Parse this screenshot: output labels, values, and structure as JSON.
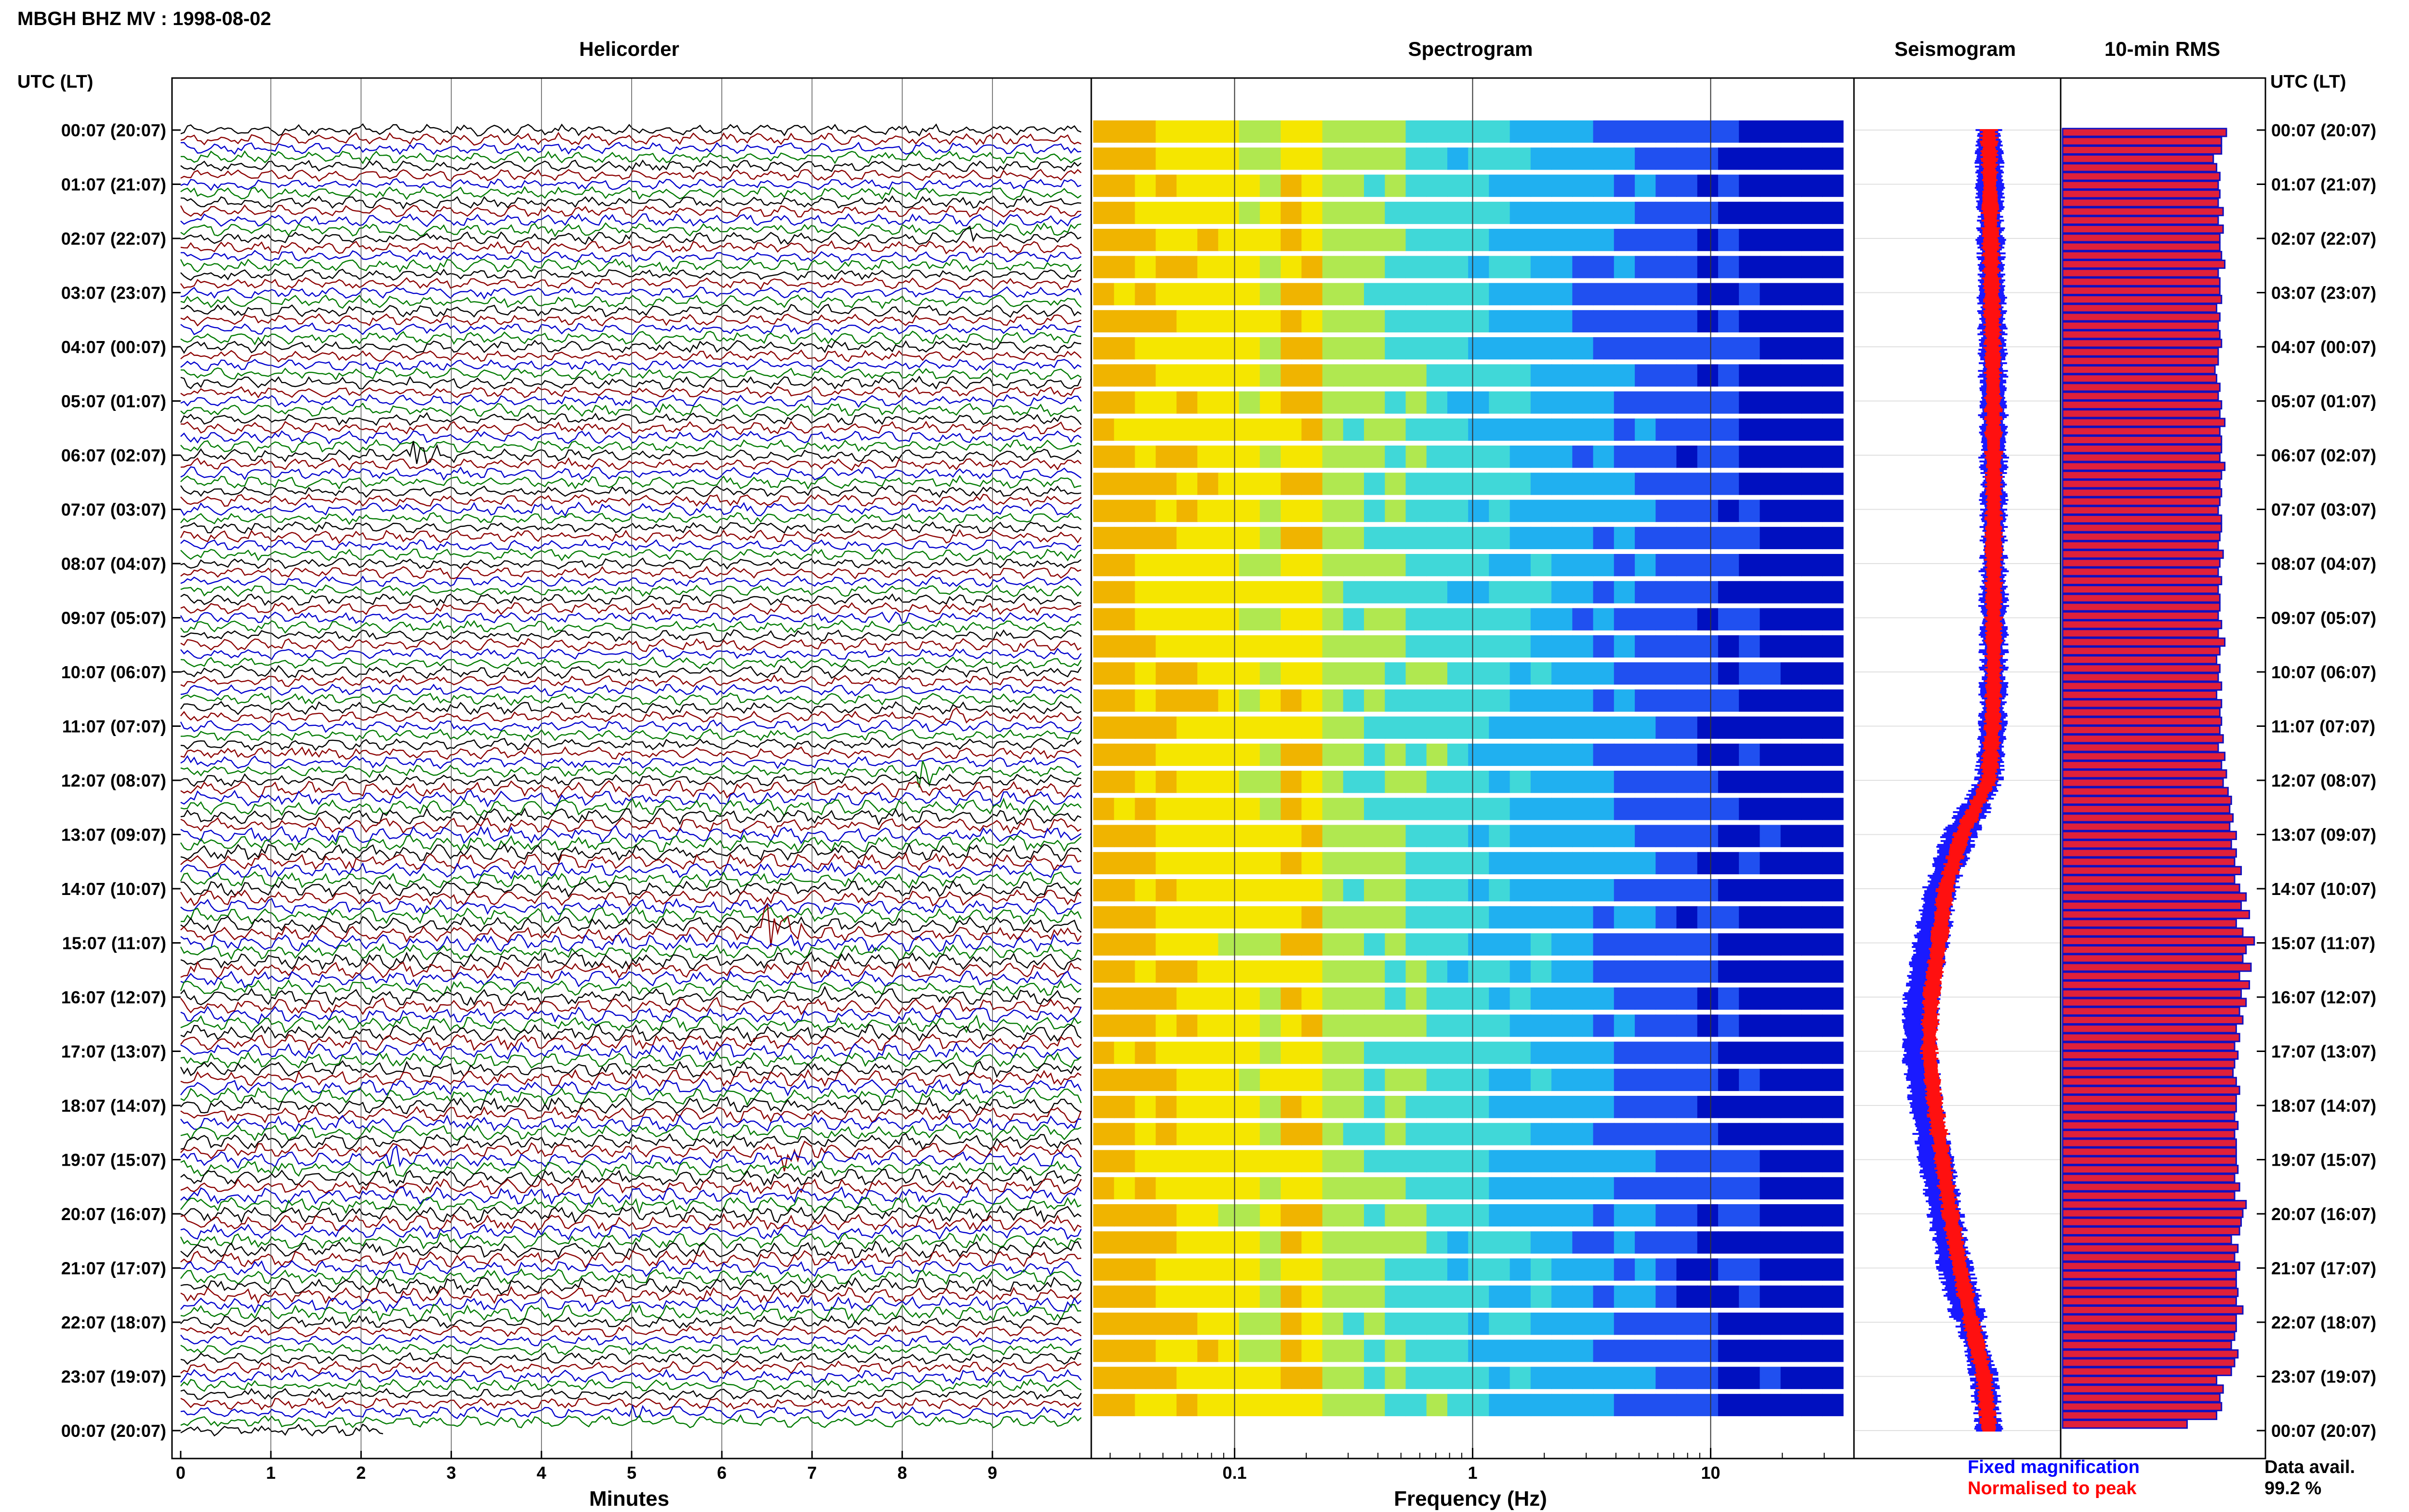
{
  "title": "MBGH BHZ MV : 1998-08-02",
  "axis_header_left": "UTC (LT)",
  "axis_header_right": "UTC (LT)",
  "panels": {
    "helicorder": "Helicorder",
    "spectrogram": "Spectrogram",
    "seismogram": "Seismogram",
    "rms": "10-min RMS"
  },
  "xlabels": {
    "helicorder": "Minutes",
    "spectrogram": "Frequency (Hz)"
  },
  "time_ticks": [
    "00:07 (20:07)",
    "01:07 (21:07)",
    "02:07 (22:07)",
    "03:07 (23:07)",
    "04:07 (00:07)",
    "05:07 (01:07)",
    "06:07 (02:07)",
    "07:07 (03:07)",
    "08:07 (04:07)",
    "09:07 (05:07)",
    "10:07 (06:07)",
    "11:07 (07:07)",
    "12:07 (08:07)",
    "13:07 (09:07)",
    "14:07 (10:07)",
    "15:07 (11:07)",
    "16:07 (12:07)",
    "17:07 (13:07)",
    "18:07 (14:07)",
    "19:07 (15:07)",
    "20:07 (16:07)",
    "21:07 (17:07)",
    "22:07 (18:07)",
    "23:07 (19:07)",
    "00:07 (20:07)"
  ],
  "minute_ticks": [
    "0",
    "1",
    "2",
    "3",
    "4",
    "5",
    "6",
    "7",
    "8",
    "9"
  ],
  "freq_ticks": [
    "0.1",
    "1",
    "10"
  ],
  "legend": {
    "fixed": "Fixed magnification",
    "normalised": "Normalised to peak",
    "fixed_color": "#0000ff",
    "normalised_color": "#ff0000"
  },
  "data_avail_label": "Data avail.",
  "data_avail_value": "99.2 %",
  "colors": {
    "trace_cycle": [
      "#000000",
      "#8b0000",
      "#0000cd",
      "#007a00"
    ],
    "rms_fill": "#e0203a",
    "rms_edge": "#1010c0",
    "spectrogram_scale": [
      "#f0b400",
      "#f5e600",
      "#b0e850",
      "#40d8d8",
      "#20b0f0",
      "#2050f0",
      "#0010c0"
    ]
  },
  "chart_data": {
    "type": "heatmap",
    "description_panels": [
      "helicorder",
      "spectrogram",
      "seismogram",
      "rms"
    ],
    "helicorder": {
      "x_unit": "minutes",
      "xlim": [
        0,
        10
      ],
      "lines_per_hour": 6,
      "hours": 24,
      "events": [
        {
          "hour": 2,
          "line": 0,
          "minute": 8.7,
          "amp": 1.5
        },
        {
          "hour": 4,
          "line": 3,
          "minute": 9.0,
          "amp": 1.2
        },
        {
          "hour": 6,
          "line": 0,
          "minute": 2.6,
          "amp": 3.0
        },
        {
          "hour": 7,
          "line": 0,
          "minute": 4.1,
          "amp": 1.2
        },
        {
          "hour": 9,
          "line": 0,
          "minute": 7.9,
          "amp": 1.6
        },
        {
          "hour": 10,
          "line": 5,
          "minute": 8.5,
          "amp": 1.4
        },
        {
          "hour": 11,
          "line": 3,
          "minute": 1.3,
          "amp": 1.8
        },
        {
          "hour": 11,
          "line": 5,
          "minute": 8.2,
          "amp": 3.5
        },
        {
          "hour": 14,
          "line": 5,
          "minute": 6.5,
          "amp": 6.0
        },
        {
          "hour": 15,
          "line": 0,
          "minute": 0.3,
          "amp": 1.4
        },
        {
          "hour": 15,
          "line": 1,
          "minute": 1.8,
          "amp": 1.6
        },
        {
          "hour": 16,
          "line": 0,
          "minute": 7.1,
          "amp": 1.4
        },
        {
          "hour": 16,
          "line": 3,
          "minute": 8.7,
          "amp": 1.3
        },
        {
          "hour": 18,
          "line": 5,
          "minute": 6.6,
          "amp": 5.0
        },
        {
          "hour": 19,
          "line": 0,
          "minute": 2.3,
          "amp": 3.5
        },
        {
          "hour": 19,
          "line": 5,
          "minute": 5.0,
          "amp": 1.4
        },
        {
          "hour": 23,
          "line": 0,
          "minute": 8.4,
          "amp": 1.2
        },
        {
          "hour": 23,
          "line": 4,
          "minute": 5.0,
          "amp": 1.4
        }
      ]
    },
    "spectrogram": {
      "x_unit": "Hz",
      "x_scale": "log",
      "xlim": [
        0.025,
        40
      ],
      "dominant_band_hz": [
        0.17,
        0.22
      ]
    },
    "seismogram": {
      "hour": [
        0,
        2,
        4,
        6,
        8,
        10,
        11,
        12,
        13,
        14,
        15,
        16,
        17,
        18,
        19,
        20,
        21,
        22,
        23,
        24
      ],
      "offset_fixed": [
        0.0,
        0.02,
        0.04,
        0.05,
        0.05,
        0.05,
        0.04,
        0.0,
        -0.3,
        -0.5,
        -0.6,
        -0.7,
        -0.72,
        -0.65,
        -0.55,
        -0.45,
        -0.35,
        -0.2,
        -0.05,
        0.0
      ],
      "offset_normalised": [
        0.0,
        0.02,
        0.04,
        0.05,
        0.05,
        0.05,
        0.04,
        0.0,
        -0.28,
        -0.45,
        -0.52,
        -0.6,
        -0.62,
        -0.56,
        -0.48,
        -0.4,
        -0.3,
        -0.18,
        -0.05,
        0.0
      ]
    },
    "rms": {
      "unit": "relative",
      "values": [
        1.0,
        0.97,
        0.97,
        0.92,
        0.94,
        0.96,
        0.95,
        0.96,
        0.95,
        0.98,
        0.95,
        0.98,
        0.96,
        0.96,
        0.97,
        0.99,
        0.95,
        0.96,
        0.96,
        0.97,
        0.94,
        0.96,
        0.95,
        0.96,
        0.97,
        0.95,
        0.95,
        0.93,
        0.94,
        0.96,
        0.95,
        0.97,
        0.96,
        0.99,
        0.96,
        0.97,
        0.97,
        0.96,
        0.99,
        0.97,
        0.96,
        0.97,
        0.96,
        0.95,
        0.97,
        0.97,
        0.96,
        0.95,
        0.98,
        0.96,
        0.95,
        0.97,
        0.95,
        0.96,
        0.96,
        0.95,
        0.97,
        0.95,
        0.99,
        0.96,
        0.94,
        0.96,
        0.95,
        0.97,
        0.94,
        0.97,
        0.96,
        0.97,
        0.96,
        0.98,
        0.95,
        0.99,
        0.97,
        1.0,
        0.98,
        1.01,
        1.03,
        1.02,
        1.04,
        1.02,
        1.06,
        1.03,
        1.06,
        1.05,
        1.09,
        1.05,
        1.08,
        1.12,
        1.09,
        1.14,
        1.06,
        1.1,
        1.17,
        1.12,
        1.1,
        1.15,
        1.08,
        1.14,
        1.09,
        1.12,
        1.08,
        1.1,
        1.06,
        1.08,
        1.05,
        1.07,
        1.05,
        1.04,
        1.06,
        1.08,
        1.06,
        1.06,
        1.05,
        1.07,
        1.05,
        1.06,
        1.06,
        1.06,
        1.07,
        1.05,
        1.08,
        1.05,
        1.12,
        1.1,
        1.09,
        1.08,
        1.03,
        1.07,
        1.05,
        1.08,
        1.06,
        1.06,
        1.07,
        1.06,
        1.1,
        1.06,
        1.06,
        1.05,
        1.03,
        1.07,
        1.05,
        1.03,
        0.94,
        0.98,
        0.96,
        0.97,
        0.94,
        0.76
      ]
    }
  }
}
